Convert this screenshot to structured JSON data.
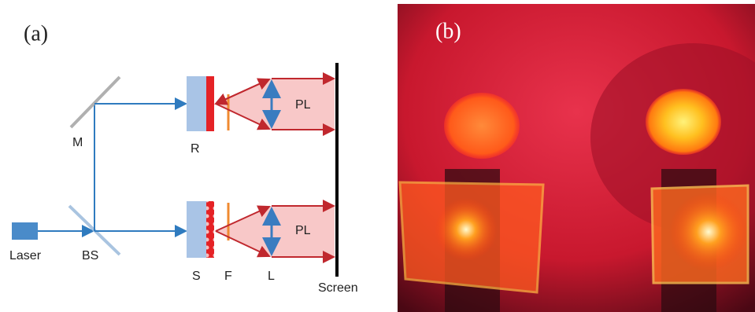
{
  "panel_a": {
    "label": "(a)",
    "laser": "Laser",
    "beam_splitter": "BS",
    "mirror": "M",
    "reference": "R",
    "sample": "S",
    "filter": "F",
    "lens": "L",
    "pl_top": "PL",
    "pl_bottom": "PL",
    "screen": "Screen"
  },
  "panel_b": {
    "label": "(b)"
  }
}
